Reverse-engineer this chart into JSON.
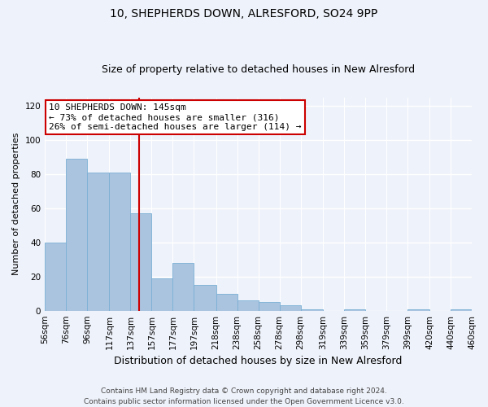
{
  "title": "10, SHEPHERDS DOWN, ALRESFORD, SO24 9PP",
  "subtitle": "Size of property relative to detached houses in New Alresford",
  "xlabel": "Distribution of detached houses by size in New Alresford",
  "ylabel": "Number of detached properties",
  "bar_left_edges": [
    56,
    76,
    96,
    117,
    137,
    157,
    177,
    197,
    218,
    238,
    258,
    278,
    298,
    319,
    339,
    359,
    379,
    399,
    420,
    440
  ],
  "bar_widths": [
    20,
    20,
    21,
    20,
    20,
    20,
    20,
    21,
    20,
    20,
    20,
    20,
    21,
    20,
    20,
    20,
    20,
    21,
    20,
    20
  ],
  "bar_heights": [
    40,
    89,
    81,
    81,
    57,
    19,
    28,
    15,
    10,
    6,
    5,
    3,
    1,
    0,
    1,
    0,
    0,
    1,
    0,
    1
  ],
  "tick_labels": [
    "56sqm",
    "76sqm",
    "96sqm",
    "117sqm",
    "137sqm",
    "157sqm",
    "177sqm",
    "197sqm",
    "218sqm",
    "238sqm",
    "258sqm",
    "278sqm",
    "298sqm",
    "319sqm",
    "339sqm",
    "359sqm",
    "379sqm",
    "399sqm",
    "420sqm",
    "440sqm",
    "460sqm"
  ],
  "bar_color": "#aac4e0",
  "bar_edge_color": "#7aafd4",
  "property_size": 145,
  "vline_color": "#cc0000",
  "annotation_line1": "10 SHEPHERDS DOWN: 145sqm",
  "annotation_line2": "← 73% of detached houses are smaller (316)",
  "annotation_line3": "26% of semi-detached houses are larger (114) →",
  "annotation_box_color": "#ffffff",
  "annotation_box_edge": "#cc0000",
  "ylim": [
    0,
    125
  ],
  "yticks": [
    0,
    20,
    40,
    60,
    80,
    100,
    120
  ],
  "bg_color": "#eef2fa",
  "plot_bg_color": "#eef2fa",
  "footer_text": "Contains HM Land Registry data © Crown copyright and database right 2024.\nContains public sector information licensed under the Open Government Licence v3.0.",
  "grid_color": "#ffffff",
  "title_fontsize": 10,
  "subtitle_fontsize": 9,
  "xlabel_fontsize": 9,
  "ylabel_fontsize": 8,
  "tick_fontsize": 7.5,
  "annotation_fontsize": 8,
  "footer_fontsize": 6.5
}
